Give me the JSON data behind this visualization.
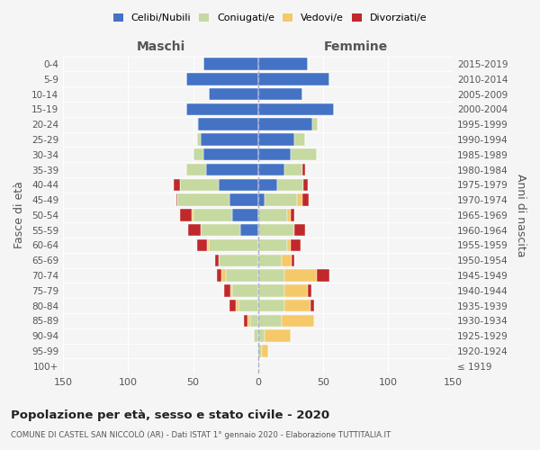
{
  "age_groups": [
    "100+",
    "95-99",
    "90-94",
    "85-89",
    "80-84",
    "75-79",
    "70-74",
    "65-69",
    "60-64",
    "55-59",
    "50-54",
    "45-49",
    "40-44",
    "35-39",
    "30-34",
    "25-29",
    "20-24",
    "15-19",
    "10-14",
    "5-9",
    "0-4"
  ],
  "birth_years": [
    "≤ 1919",
    "1920-1924",
    "1925-1929",
    "1930-1934",
    "1935-1939",
    "1940-1944",
    "1945-1949",
    "1950-1954",
    "1955-1959",
    "1960-1964",
    "1965-1969",
    "1970-1974",
    "1975-1979",
    "1980-1984",
    "1985-1989",
    "1990-1994",
    "1995-1999",
    "2000-2004",
    "2005-2009",
    "2010-2014",
    "2015-2019"
  ],
  "males": {
    "celibe": [
      0,
      0,
      0,
      0,
      0,
      0,
      0,
      0,
      0,
      14,
      20,
      22,
      30,
      40,
      42,
      44,
      46,
      55,
      38,
      55,
      42
    ],
    "coniugato": [
      0,
      0,
      3,
      6,
      15,
      20,
      25,
      30,
      38,
      30,
      30,
      40,
      30,
      15,
      8,
      3,
      1,
      0,
      0,
      0,
      0
    ],
    "vedovo": [
      0,
      0,
      0,
      2,
      2,
      1,
      3,
      0,
      1,
      0,
      1,
      0,
      0,
      0,
      0,
      0,
      0,
      0,
      0,
      0,
      0
    ],
    "divorziato": [
      0,
      0,
      0,
      3,
      5,
      5,
      4,
      3,
      8,
      10,
      9,
      1,
      5,
      0,
      0,
      0,
      0,
      0,
      0,
      0,
      0
    ]
  },
  "females": {
    "nubile": [
      0,
      0,
      0,
      0,
      0,
      0,
      0,
      0,
      0,
      0,
      0,
      5,
      15,
      20,
      25,
      28,
      42,
      58,
      34,
      55,
      38
    ],
    "coniugata": [
      0,
      3,
      5,
      18,
      20,
      20,
      20,
      18,
      22,
      28,
      22,
      25,
      20,
      14,
      20,
      8,
      4,
      0,
      0,
      0,
      0
    ],
    "vedova": [
      1,
      5,
      20,
      25,
      20,
      18,
      25,
      8,
      3,
      0,
      3,
      4,
      0,
      0,
      0,
      0,
      0,
      0,
      0,
      0,
      0
    ],
    "divorziata": [
      0,
      0,
      0,
      0,
      3,
      3,
      10,
      2,
      8,
      8,
      3,
      5,
      3,
      2,
      0,
      0,
      0,
      0,
      0,
      0,
      0
    ]
  },
  "colors": {
    "celibe": "#4472c4",
    "coniugato": "#c5d9a0",
    "vedovo": "#f5c96a",
    "divorziato": "#c0282c"
  },
  "xlim": 150,
  "title": "Popolazione per età, sesso e stato civile - 2020",
  "subtitle": "COMUNE DI CASTEL SAN NICCOLÒ (AR) - Dati ISTAT 1° gennaio 2020 - Elaborazione TUTTITALIA.IT",
  "ylabel_left": "Fasce di età",
  "ylabel_right": "Anni di nascita",
  "xlabel_male": "Maschi",
  "xlabel_female": "Femmine",
  "legend_labels": [
    "Celibi/Nubili",
    "Coniugati/e",
    "Vedovi/e",
    "Divorziati/e"
  ],
  "bg_color": "#f5f5f5",
  "bar_height": 0.8
}
